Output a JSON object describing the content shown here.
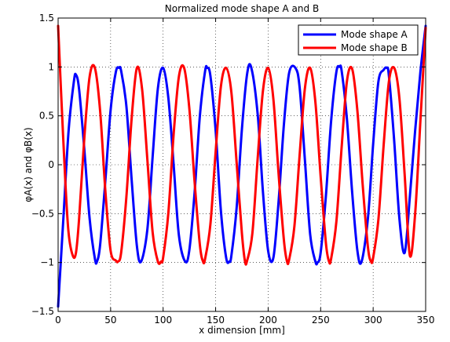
{
  "chart_data": {
    "type": "line",
    "title": "Normalized mode shape A and B",
    "xlabel": "x dimension [mm]",
    "ylabel": "φA(x) and φB(x)",
    "xlim": [
      0,
      350
    ],
    "ylim": [
      -1.5,
      1.5
    ],
    "xticks": [
      0,
      50,
      100,
      150,
      200,
      250,
      300,
      350
    ],
    "yticks": [
      -1.5,
      -1,
      -0.5,
      0,
      0.5,
      1,
      1.5
    ],
    "xtick_labels": [
      "0",
      "50",
      "100",
      "150",
      "200",
      "250",
      "300",
      "350"
    ],
    "ytick_labels": [
      "−1.5",
      "−1",
      "−0.5",
      "0",
      "0.5",
      "1",
      "1.5"
    ],
    "grid": true,
    "legend_position": "top-right",
    "series": [
      {
        "name": "Mode shape A",
        "color": "#0000ff",
        "x": [
          0,
          5,
          10,
          15,
          17,
          20,
          25,
          30,
          35,
          37,
          40,
          45,
          50,
          55,
          58,
          60,
          65,
          70,
          75,
          79,
          85,
          90,
          95,
          100,
          105,
          110,
          115,
          121,
          125,
          130,
          135,
          140,
          142,
          145,
          150,
          155,
          160,
          163,
          165,
          170,
          175,
          180,
          184,
          190,
          195,
          200,
          205,
          210,
          215,
          220,
          226,
          230,
          235,
          240,
          245,
          247,
          250,
          255,
          260,
          265,
          268,
          270,
          275,
          280,
          285,
          289,
          295,
          300,
          305,
          310,
          313,
          315,
          320,
          325,
          330,
          335,
          340,
          345,
          350
        ],
        "y": [
          -1.45,
          -0.55,
          0.35,
          0.85,
          0.92,
          0.77,
          0.15,
          -0.55,
          -0.96,
          -0.99,
          -0.82,
          -0.16,
          0.56,
          0.95,
          0.99,
          0.96,
          0.6,
          -0.15,
          -0.83,
          -0.99,
          -0.66,
          0.08,
          0.78,
          0.99,
          0.68,
          0.0,
          -0.72,
          -0.99,
          -0.87,
          -0.28,
          0.5,
          0.96,
          0.99,
          0.91,
          0.35,
          -0.47,
          -0.95,
          -0.99,
          -0.93,
          -0.44,
          0.36,
          0.93,
          0.99,
          0.52,
          -0.27,
          -0.88,
          -0.95,
          -0.37,
          0.41,
          0.94,
          0.99,
          0.79,
          0.05,
          -0.71,
          -0.99,
          -1.0,
          -0.9,
          -0.32,
          0.45,
          0.95,
          1.0,
          0.96,
          0.47,
          -0.28,
          -0.88,
          -0.99,
          -0.55,
          0.21,
          0.85,
          0.97,
          0.99,
          0.91,
          0.25,
          -0.55,
          -0.9,
          -0.32,
          0.35,
          0.95,
          1.42
        ]
      },
      {
        "name": "Mode shape B",
        "color": "#ff0000",
        "x": [
          0,
          3,
          7,
          10,
          14,
          17,
          20,
          25,
          30,
          35,
          40,
          45,
          50,
          55,
          57,
          60,
          65,
          70,
          75,
          80,
          85,
          90,
          95,
          98,
          100,
          105,
          110,
          115,
          120,
          125,
          130,
          135,
          138,
          140,
          145,
          150,
          155,
          160,
          165,
          170,
          175,
          178,
          180,
          185,
          190,
          195,
          200,
          205,
          210,
          215,
          218,
          220,
          225,
          230,
          235,
          240,
          245,
          250,
          255,
          258,
          260,
          265,
          270,
          275,
          280,
          285,
          290,
          295,
          298,
          300,
          305,
          310,
          315,
          320,
          325,
          330,
          335,
          340,
          345,
          350
        ],
        "y": [
          1.42,
          0.7,
          -0.2,
          -0.7,
          -0.93,
          -0.9,
          -0.55,
          0.28,
          0.9,
          0.99,
          0.55,
          -0.27,
          -0.88,
          -0.98,
          -0.99,
          -0.9,
          -0.33,
          0.47,
          0.99,
          0.77,
          0.05,
          -0.69,
          -0.99,
          -0.99,
          -0.95,
          -0.49,
          0.31,
          0.9,
          0.99,
          0.57,
          -0.18,
          -0.82,
          -0.99,
          -0.96,
          -0.61,
          0.13,
          0.8,
          0.99,
          0.74,
          0.02,
          -0.7,
          -0.99,
          -0.98,
          -0.7,
          0.06,
          0.75,
          0.99,
          0.67,
          -0.1,
          -0.77,
          -0.99,
          -0.97,
          -0.63,
          0.1,
          0.78,
          0.99,
          0.64,
          -0.12,
          -0.8,
          -0.99,
          -0.96,
          -0.58,
          0.18,
          0.85,
          0.98,
          0.55,
          -0.2,
          -0.84,
          -0.99,
          -0.95,
          -0.56,
          0.2,
          0.85,
          0.99,
          0.68,
          -0.1,
          -0.93,
          -0.5,
          0.45,
          1.4
        ]
      }
    ]
  }
}
